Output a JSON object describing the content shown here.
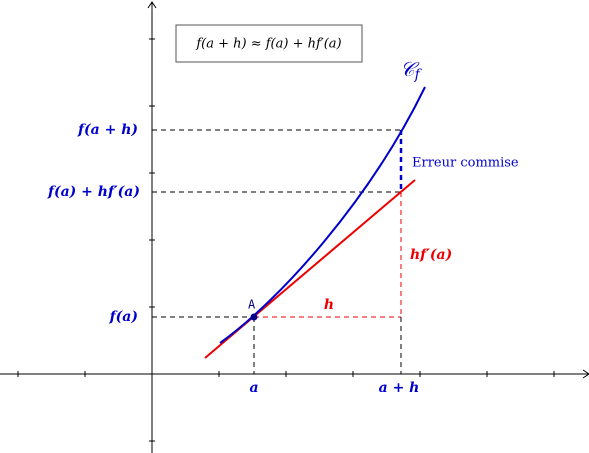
{
  "formula": "f(a + h) ≈ f(a) + hf′(a)",
  "curve_label": {
    "name": "𝒞",
    "subscript": "f"
  },
  "y_labels": [
    "f(a + h)",
    "f(a) + hf′(a)",
    "f(a)"
  ],
  "x_labels": [
    "a",
    "a + h"
  ],
  "annotations": {
    "error": "Erreur commise",
    "h": "h",
    "increment": "hf′(a)",
    "point": "A"
  }
}
